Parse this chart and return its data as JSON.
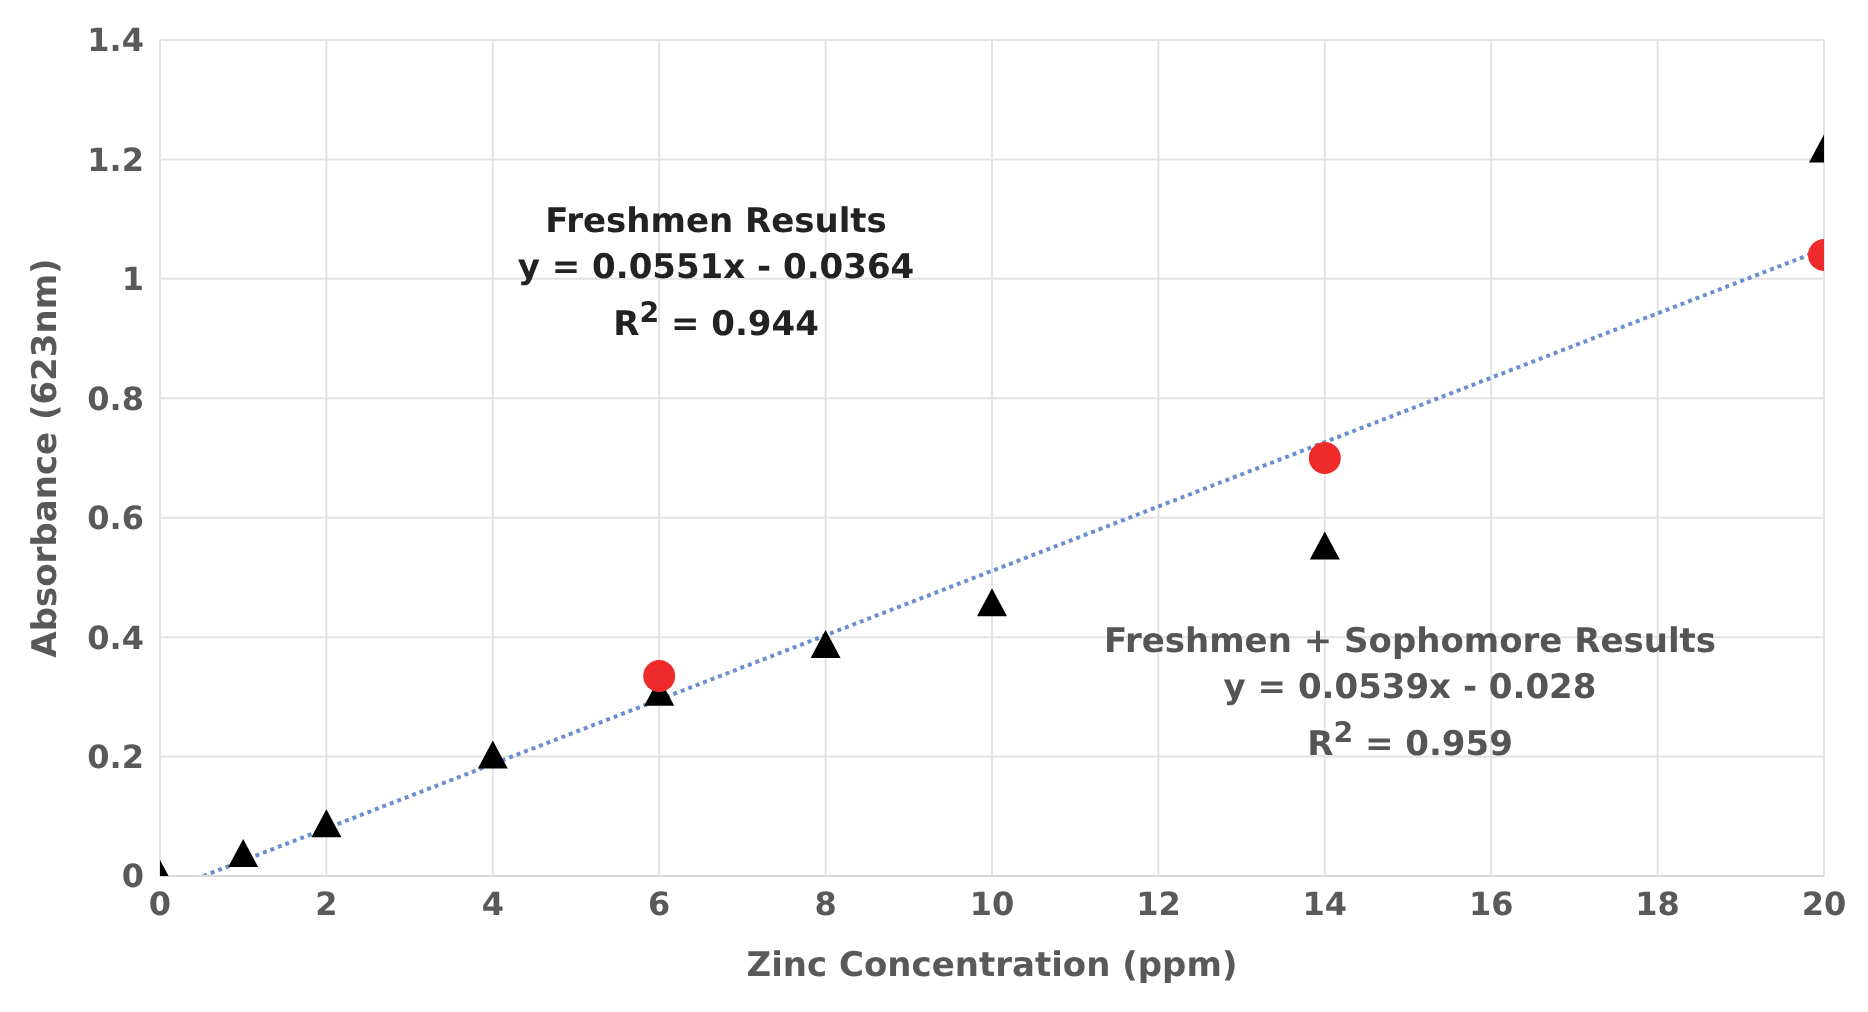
{
  "chart_data": {
    "type": "scatter",
    "xlabel": "Zinc Concentration (ppm)",
    "ylabel": "Absorbance (623nm)",
    "xlim": [
      0,
      20
    ],
    "xticks": [
      0,
      2,
      4,
      6,
      8,
      10,
      12,
      14,
      16,
      18,
      20
    ],
    "ylim": [
      0,
      1.4
    ],
    "yticks": [
      0,
      0.2,
      0.4,
      0.6,
      0.8,
      1,
      1.2,
      1.4
    ],
    "grid": true,
    "series": [
      {
        "type": "line",
        "color": "#6a8fd0",
        "line_style": "dotted",
        "marker": "none",
        "x": [
          0.52,
          20
        ],
        "values": [
          0,
          1.05
        ]
      },
      {
        "color": "#000000",
        "marker": "triangle",
        "x": [
          0,
          1,
          2,
          4,
          6,
          8,
          10,
          14,
          20
        ],
        "values": [
          0,
          0.035,
          0.085,
          0.2,
          0.305,
          0.385,
          0.455,
          0.55,
          1.215
        ]
      },
      {
        "color": "#ee2a2a",
        "marker": "circle",
        "x": [
          6,
          14,
          20
        ],
        "values": [
          0.335,
          0.7,
          1.04
        ]
      }
    ],
    "annotations": [
      "Freshmen Results\ny = 0.0551x - 0.0364\nR$^{2}$ = 0.944",
      "Freshmen + Sophomore Results\ny = 0.0539x - 0.028\nR$^{2}$ = 0.959"
    ]
  }
}
